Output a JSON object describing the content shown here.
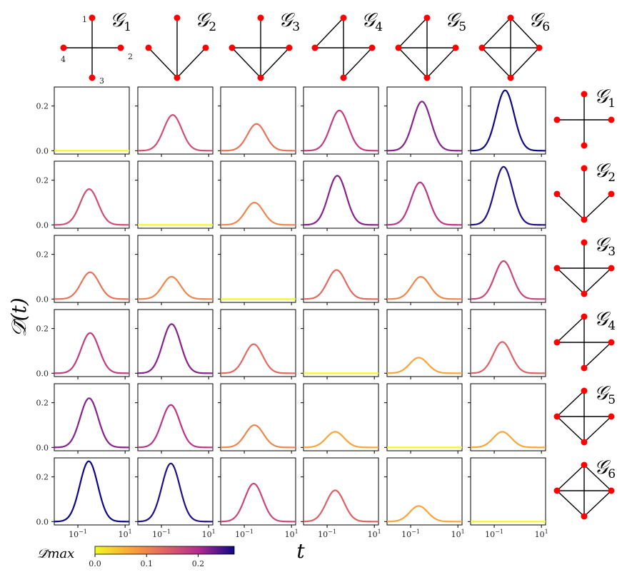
{
  "chart_data": {
    "type": "line",
    "ylabel": "𝒟̄(t)",
    "xlabel": "t",
    "x_scale": "log",
    "xlim": [
      0.01,
      15
    ],
    "ylim": [
      -0.015,
      0.285
    ],
    "y_ticks": [
      {
        "value": 0.0,
        "label": "0.0"
      },
      {
        "value": 0.2,
        "label": "0.2"
      }
    ],
    "x_ticks": [
      {
        "value": 0.1,
        "base": "10",
        "exp": "−1"
      },
      {
        "value": 10,
        "base": "10",
        "exp": "1"
      }
    ],
    "graphs": [
      {
        "name": "𝒢",
        "sub": "1",
        "edges": [
          [
            0,
            2
          ],
          [
            1,
            3
          ]
        ]
      },
      {
        "name": "𝒢",
        "sub": "2",
        "edges": [
          [
            0,
            2
          ],
          [
            1,
            2
          ],
          [
            2,
            3
          ]
        ]
      },
      {
        "name": "𝒢",
        "sub": "3",
        "edges": [
          [
            0,
            2
          ],
          [
            1,
            2
          ],
          [
            2,
            3
          ],
          [
            1,
            3
          ]
        ]
      },
      {
        "name": "𝒢",
        "sub": "4",
        "edges": [
          [
            0,
            2
          ],
          [
            1,
            3
          ],
          [
            0,
            3
          ],
          [
            1,
            2
          ]
        ]
      },
      {
        "name": "𝒢",
        "sub": "5",
        "edges": [
          [
            0,
            2
          ],
          [
            1,
            3
          ],
          [
            0,
            3
          ],
          [
            1,
            2
          ],
          [
            2,
            3
          ]
        ]
      },
      {
        "name": "𝒢",
        "sub": "6",
        "edges": [
          [
            0,
            2
          ],
          [
            1,
            3
          ],
          [
            0,
            3
          ],
          [
            0,
            1
          ],
          [
            1,
            2
          ],
          [
            2,
            3
          ]
        ]
      }
    ],
    "graph1_vertex_labels": [
      "1",
      "2",
      "3",
      "4"
    ],
    "peak_t": [
      [
        0.35,
        0.3,
        0.33,
        0.33,
        0.3,
        0.29
      ],
      [
        0.3,
        0.3,
        0.27,
        0.27,
        0.25,
        0.25
      ],
      [
        0.33,
        0.27,
        0.3,
        0.25,
        0.27,
        0.25
      ],
      [
        0.33,
        0.27,
        0.25,
        0.25,
        0.22,
        0.22
      ],
      [
        0.3,
        0.25,
        0.27,
        0.22,
        0.25,
        0.22
      ],
      [
        0.29,
        0.25,
        0.25,
        0.22,
        0.22,
        0.25
      ]
    ],
    "peak_values": [
      [
        0.0,
        0.16,
        0.12,
        0.18,
        0.22,
        0.27
      ],
      [
        0.16,
        0.0,
        0.1,
        0.22,
        0.19,
        0.26
      ],
      [
        0.12,
        0.1,
        0.0,
        0.13,
        0.1,
        0.17
      ],
      [
        0.18,
        0.22,
        0.13,
        0.0,
        0.07,
        0.14
      ],
      [
        0.22,
        0.19,
        0.1,
        0.07,
        0.0,
        0.07
      ],
      [
        0.27,
        0.26,
        0.17,
        0.14,
        0.07,
        0.0
      ]
    ],
    "colorbar": {
      "label": "𝒟̄max",
      "colormap": "plasma_r",
      "range": [
        0.0,
        0.27
      ],
      "ticks": [
        "0.0",
        "0.1",
        "0.2"
      ],
      "tick_values": [
        0.0,
        0.1,
        0.2
      ]
    },
    "vertex_color": "#ff0000",
    "edge_color": "#000000",
    "grid": false
  }
}
